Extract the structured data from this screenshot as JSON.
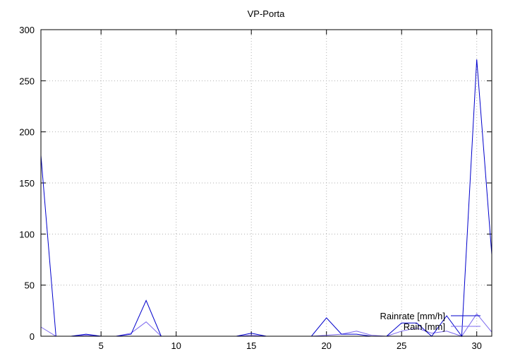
{
  "chart_data": {
    "type": "line",
    "title": "VP-Porta",
    "xlabel": "",
    "ylabel": "",
    "xlim": [
      1,
      31
    ],
    "ylim": [
      0,
      300
    ],
    "x_ticks": [
      5,
      10,
      15,
      20,
      25,
      30
    ],
    "y_ticks": [
      0,
      50,
      100,
      150,
      200,
      250,
      300
    ],
    "grid": true,
    "legend_position": "bottom-right",
    "x": [
      1,
      2,
      3,
      4,
      5,
      6,
      7,
      8,
      9,
      10,
      11,
      12,
      13,
      14,
      15,
      16,
      17,
      18,
      19,
      20,
      21,
      22,
      23,
      24,
      25,
      26,
      27,
      28,
      29,
      30,
      31
    ],
    "series": [
      {
        "name": "Rainrate [mm/h]",
        "color": "#0000cc",
        "values": [
          177,
          0,
          0,
          2,
          0,
          0,
          2,
          35,
          0,
          0,
          0,
          0,
          0,
          0,
          3,
          0,
          0,
          0,
          0,
          18,
          2,
          2,
          0,
          0,
          13,
          13,
          0,
          20,
          0,
          271,
          80
        ]
      },
      {
        "name": "Rain [mm]",
        "color": "#7b68ee",
        "values": [
          9,
          0,
          0,
          1,
          0,
          0,
          3,
          14,
          0,
          0,
          0,
          0,
          0,
          0,
          1,
          0,
          0,
          0,
          0,
          1,
          2,
          5,
          1,
          0,
          5,
          8,
          3,
          5,
          0,
          22,
          4
        ]
      }
    ]
  }
}
